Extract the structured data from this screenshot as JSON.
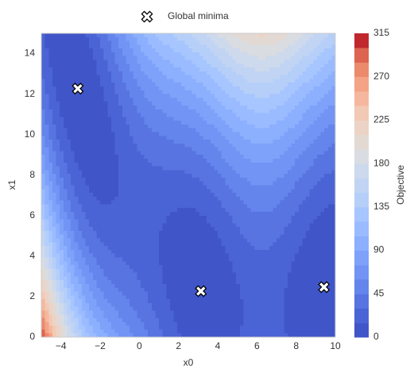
{
  "chart_data": {
    "type": "contour",
    "x_label": "x0",
    "y_label": "x1",
    "xlim": [
      -5,
      10
    ],
    "ylim": [
      0,
      15
    ],
    "xticks": [
      {
        "value": -4,
        "label": "−4"
      },
      {
        "value": -2,
        "label": "−2"
      },
      0,
      2,
      4,
      6,
      8,
      10
    ],
    "yticks": [
      0,
      2,
      4,
      6,
      8,
      10,
      12,
      14
    ],
    "legend_corner": "upper center",
    "series": [
      {
        "name": "Global minima",
        "color": "#ffffff",
        "x": [
          -3.14,
          3.14,
          9.42
        ],
        "y": [
          12.27,
          2.27,
          2.47
        ]
      }
    ],
    "colorbar": {
      "label": "Objective",
      "levels": [
        0,
        15,
        30,
        45,
        60,
        75,
        90,
        105,
        120,
        135,
        150,
        165,
        180,
        195,
        210,
        225,
        240,
        255,
        270,
        285,
        300,
        315
      ],
      "ticks": [
        0,
        45,
        90,
        135,
        180,
        225,
        270,
        315
      ],
      "colors": [
        "#4055c8",
        "#4b64d5",
        "#5774e1",
        "#6485ec",
        "#7194f5",
        "#7ea1fa",
        "#8caffe",
        "#9abbff",
        "#a7c5fe",
        "#b5cff9",
        "#c1d4f4",
        "#cdd9ec",
        "#d9dce1",
        "#e3d9d3",
        "#ecd3c5",
        "#f2c9b4",
        "#f5b89e",
        "#f4a386",
        "#ec8a6c",
        "#dd6450",
        "#c0282d"
      ]
    }
  }
}
